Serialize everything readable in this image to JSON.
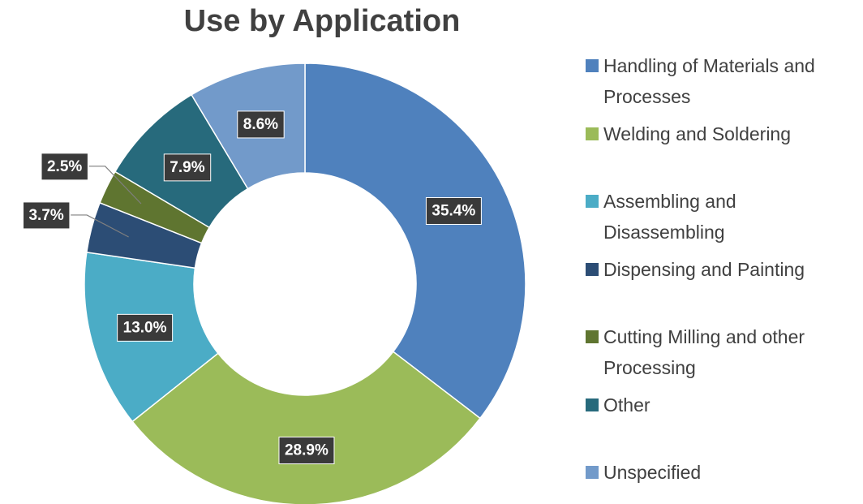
{
  "chart_data": {
    "type": "donut",
    "title": "Use by Application",
    "categories": [
      "Handling of Materials and Processes",
      "Welding and Soldering",
      "Assembling and Disassembling",
      "Dispensing and Painting",
      "Cutting Milling and other Processing",
      "Other",
      "Unspecified"
    ],
    "values": [
      35.4,
      28.9,
      13.0,
      3.7,
      2.5,
      7.9,
      8.6
    ],
    "value_labels": [
      "35.4%",
      "28.9%",
      "13.0%",
      "3.7%",
      "2.5%",
      "7.9%",
      "8.6%"
    ],
    "colors": [
      "#4f81bd",
      "#9bbb59",
      "#4bacc6",
      "#2c4d75",
      "#5f7530",
      "#276a7c",
      "#729aca"
    ],
    "legend": "right"
  }
}
